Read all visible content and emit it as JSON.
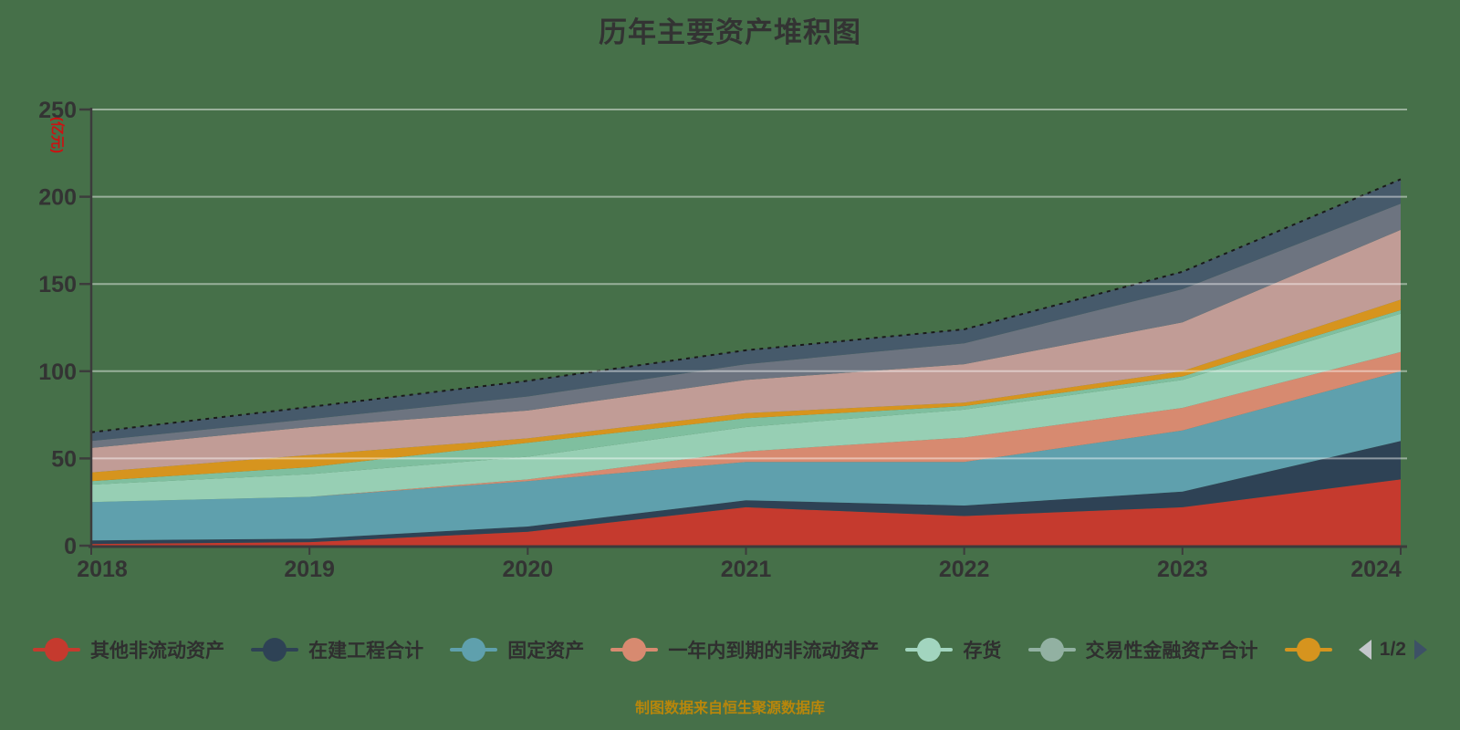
{
  "title": "历年主要资产堆积图",
  "source_note": "制图数据来自恒生聚源数据库",
  "colors": {
    "background": "#467049",
    "text": "#333333",
    "axis": "#3c3c3c",
    "gridline": "rgba(255,255,255,0.45)",
    "axis_name_red": "#cc1111",
    "source_gold": "#b8860b",
    "dashed_top_line": "#1a1a1a"
  },
  "y_axis": {
    "name": "(亿元)",
    "ticks": [
      "0",
      "50",
      "100",
      "150",
      "200",
      "250"
    ]
  },
  "x_axis": {
    "labels": [
      "2018",
      "2019",
      "2020",
      "2021",
      "2022",
      "2023",
      "2024"
    ]
  },
  "legend": {
    "items": [
      {
        "label": "其他非流动资产",
        "color": "#c53a2e"
      },
      {
        "label": "在建工程合计",
        "color": "#2e4255"
      },
      {
        "label": "固定资产",
        "color": "#5fa0ad"
      },
      {
        "label": "一年内到期的非流动资产",
        "color": "#d78a70"
      },
      {
        "label": "存货",
        "color": "#a2d5bf"
      },
      {
        "label": "交易性金融资产合计",
        "color": "#92b1a2"
      },
      {
        "label": "",
        "color": "#d6941e"
      }
    ],
    "pagination": {
      "current": "1/2"
    }
  },
  "chart_data": {
    "type": "area",
    "stacked": true,
    "title": "历年主要资产堆积图",
    "x": [
      "2018",
      "2019",
      "2020",
      "2021",
      "2022",
      "2023",
      "2024"
    ],
    "ylabel": "(亿元)",
    "ylim": [
      0,
      250
    ],
    "grid": true,
    "legend_position": "bottom",
    "legend_page": "1/2",
    "top_border": "dashed",
    "series": [
      {
        "name": "其他非流动资产",
        "color": "#c53a2e",
        "values": [
          1,
          2,
          8,
          22,
          17,
          22,
          38
        ]
      },
      {
        "name": "在建工程合计",
        "color": "#2e4255",
        "values": [
          2,
          2,
          3,
          4,
          6,
          9,
          22
        ]
      },
      {
        "name": "固定资产",
        "color": "#5fa0ad",
        "values": [
          22,
          24,
          26,
          22,
          25,
          35,
          40
        ]
      },
      {
        "name": "一年内到期的非流动资产",
        "color": "#d78a70",
        "values": [
          0,
          0,
          1,
          6,
          14,
          13,
          11
        ]
      },
      {
        "name": "存货",
        "color": "#97cfb4",
        "values": [
          10,
          13,
          13,
          14,
          16,
          16,
          22
        ]
      },
      {
        "name": "交易性金融资产合计",
        "color": "#7fbf9f",
        "values": [
          2,
          4,
          8,
          5,
          2,
          2,
          2
        ]
      },
      {
        "name": "",
        "color": "#d6941e",
        "values": [
          5,
          7,
          2.5,
          3,
          2,
          3,
          6
        ]
      },
      {
        "name": "",
        "color": "#c19c96",
        "values": [
          14,
          16,
          16,
          19,
          22,
          28,
          40
        ]
      },
      {
        "name": "",
        "color": "#6d7480",
        "values": [
          4,
          4.5,
          8,
          9,
          12,
          19,
          15
        ]
      },
      {
        "name": "",
        "color": "#465a6b",
        "values": [
          5,
          7,
          9,
          8,
          8,
          10,
          14
        ]
      }
    ]
  }
}
